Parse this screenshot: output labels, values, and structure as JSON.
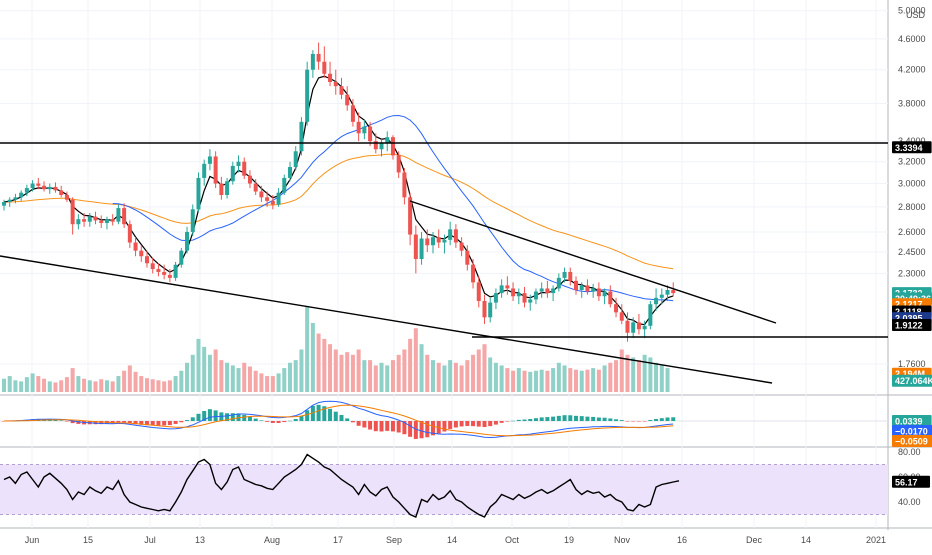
{
  "chart_data": {
    "type": "candlestick",
    "currency": "USD",
    "price_axis": {
      "scale": "log",
      "range": [
        1.62,
        5.1
      ],
      "ticks": [
        "5.0000",
        "4.6000",
        "4.2000",
        "3.8000",
        "3.4000",
        "3.2000",
        "3.0000",
        "2.8000",
        "2.6000",
        "2.4500",
        "2.3000",
        "1.7600"
      ],
      "tick_values": [
        5.0,
        4.6,
        4.2,
        3.8,
        3.4,
        3.2,
        3.0,
        2.8,
        2.6,
        2.45,
        2.3,
        1.76
      ]
    },
    "time_axis": {
      "labels": [
        "Jun",
        "15",
        "Jul",
        "13",
        "Aug",
        "17",
        "Sep",
        "14",
        "Oct",
        "19",
        "Nov",
        "16",
        "Dec",
        "14",
        "2021"
      ]
    },
    "candles": [
      [
        2.81,
        2.86,
        2.77,
        2.84
      ],
      [
        2.84,
        2.88,
        2.8,
        2.86
      ],
      [
        2.86,
        2.91,
        2.83,
        2.88
      ],
      [
        2.88,
        2.94,
        2.85,
        2.92
      ],
      [
        2.92,
        2.99,
        2.89,
        2.96
      ],
      [
        2.96,
        3.03,
        2.93,
        3.0
      ],
      [
        3.0,
        3.05,
        2.95,
        2.98
      ],
      [
        2.98,
        3.02,
        2.93,
        2.95
      ],
      [
        2.95,
        3.0,
        2.91,
        2.97
      ],
      [
        2.97,
        3.01,
        2.92,
        2.94
      ],
      [
        2.94,
        2.98,
        2.88,
        2.9
      ],
      [
        2.9,
        2.93,
        2.84,
        2.86
      ],
      [
        2.86,
        2.88,
        2.58,
        2.66
      ],
      [
        2.66,
        2.74,
        2.62,
        2.7
      ],
      [
        2.7,
        2.75,
        2.64,
        2.68
      ],
      [
        2.68,
        2.75,
        2.64,
        2.72
      ],
      [
        2.72,
        2.76,
        2.66,
        2.69
      ],
      [
        2.69,
        2.73,
        2.63,
        2.67
      ],
      [
        2.67,
        2.72,
        2.62,
        2.7
      ],
      [
        2.7,
        2.74,
        2.65,
        2.68
      ],
      [
        2.68,
        2.82,
        2.66,
        2.79
      ],
      [
        2.79,
        2.83,
        2.63,
        2.66
      ],
      [
        2.66,
        2.69,
        2.48,
        2.52
      ],
      [
        2.52,
        2.56,
        2.42,
        2.46
      ],
      [
        2.46,
        2.5,
        2.38,
        2.42
      ],
      [
        2.42,
        2.46,
        2.34,
        2.37
      ],
      [
        2.37,
        2.41,
        2.3,
        2.33
      ],
      [
        2.33,
        2.37,
        2.28,
        2.31
      ],
      [
        2.31,
        2.36,
        2.26,
        2.29
      ],
      [
        2.29,
        2.33,
        2.24,
        2.27
      ],
      [
        2.27,
        2.38,
        2.25,
        2.36
      ],
      [
        2.36,
        2.48,
        2.34,
        2.46
      ],
      [
        2.46,
        2.64,
        2.44,
        2.6
      ],
      [
        2.6,
        2.82,
        2.57,
        2.78
      ],
      [
        2.78,
        3.1,
        2.76,
        3.05
      ],
      [
        3.05,
        3.22,
        2.98,
        3.18
      ],
      [
        3.18,
        3.32,
        3.12,
        3.25
      ],
      [
        3.25,
        3.3,
        2.96,
        3.0
      ],
      [
        3.0,
        3.06,
        2.86,
        2.9
      ],
      [
        2.9,
        3.05,
        2.87,
        3.02
      ],
      [
        3.02,
        3.2,
        2.99,
        3.16
      ],
      [
        3.16,
        3.26,
        3.1,
        3.2
      ],
      [
        3.2,
        3.24,
        3.04,
        3.07
      ],
      [
        3.07,
        3.12,
        2.96,
        3.0
      ],
      [
        3.0,
        3.04,
        2.9,
        2.93
      ],
      [
        2.93,
        2.98,
        2.84,
        2.88
      ],
      [
        2.88,
        2.93,
        2.8,
        2.85
      ],
      [
        2.85,
        2.9,
        2.78,
        2.82
      ],
      [
        2.82,
        2.96,
        2.8,
        2.92
      ],
      [
        2.92,
        3.08,
        2.9,
        3.05
      ],
      [
        3.05,
        3.2,
        3.02,
        3.15
      ],
      [
        3.15,
        3.35,
        3.12,
        3.3
      ],
      [
        3.3,
        3.65,
        3.26,
        3.6
      ],
      [
        3.6,
        4.3,
        3.56,
        4.2
      ],
      [
        4.2,
        4.45,
        4.1,
        4.4
      ],
      [
        4.4,
        4.55,
        4.2,
        4.3
      ],
      [
        4.3,
        4.5,
        4.1,
        4.15
      ],
      [
        4.15,
        4.3,
        4.0,
        4.05
      ],
      [
        4.05,
        4.2,
        3.9,
        4.0
      ],
      [
        4.0,
        4.1,
        3.85,
        3.9
      ],
      [
        3.9,
        4.0,
        3.72,
        3.78
      ],
      [
        3.78,
        3.85,
        3.55,
        3.6
      ],
      [
        3.6,
        3.7,
        3.4,
        3.48
      ],
      [
        3.48,
        3.62,
        3.42,
        3.55
      ],
      [
        3.55,
        3.6,
        3.35,
        3.4
      ],
      [
        3.4,
        3.48,
        3.28,
        3.32
      ],
      [
        3.32,
        3.42,
        3.25,
        3.38
      ],
      [
        3.38,
        3.5,
        3.3,
        3.44
      ],
      [
        3.44,
        3.46,
        3.22,
        3.26
      ],
      [
        3.26,
        3.3,
        3.05,
        3.1
      ],
      [
        3.1,
        3.14,
        2.82,
        2.88
      ],
      [
        2.88,
        2.92,
        2.5,
        2.58
      ],
      [
        2.58,
        2.65,
        2.3,
        2.4
      ],
      [
        2.4,
        2.6,
        2.36,
        2.55
      ],
      [
        2.55,
        2.62,
        2.45,
        2.5
      ],
      [
        2.5,
        2.6,
        2.44,
        2.56
      ],
      [
        2.56,
        2.62,
        2.48,
        2.52
      ],
      [
        2.52,
        2.58,
        2.44,
        2.54
      ],
      [
        2.54,
        2.68,
        2.5,
        2.62
      ],
      [
        2.62,
        2.66,
        2.48,
        2.52
      ],
      [
        2.52,
        2.56,
        2.42,
        2.46
      ],
      [
        2.46,
        2.5,
        2.32,
        2.36
      ],
      [
        2.36,
        2.4,
        2.2,
        2.24
      ],
      [
        2.24,
        2.28,
        2.08,
        2.12
      ],
      [
        2.12,
        2.16,
        1.98,
        2.02
      ],
      [
        2.02,
        2.14,
        1.99,
        2.11
      ],
      [
        2.11,
        2.2,
        2.07,
        2.17
      ],
      [
        2.17,
        2.26,
        2.14,
        2.22
      ],
      [
        2.22,
        2.28,
        2.16,
        2.2
      ],
      [
        2.2,
        2.24,
        2.12,
        2.15
      ],
      [
        2.15,
        2.2,
        2.1,
        2.17
      ],
      [
        2.17,
        2.21,
        2.08,
        2.11
      ],
      [
        2.11,
        2.16,
        2.06,
        2.13
      ],
      [
        2.13,
        2.2,
        2.1,
        2.18
      ],
      [
        2.18,
        2.24,
        2.14,
        2.2
      ],
      [
        2.2,
        2.25,
        2.14,
        2.17
      ],
      [
        2.17,
        2.22,
        2.12,
        2.2
      ],
      [
        2.2,
        2.3,
        2.18,
        2.27
      ],
      [
        2.27,
        2.34,
        2.24,
        2.31
      ],
      [
        2.31,
        2.34,
        2.22,
        2.25
      ],
      [
        2.25,
        2.28,
        2.16,
        2.19
      ],
      [
        2.19,
        2.24,
        2.14,
        2.22
      ],
      [
        2.22,
        2.26,
        2.16,
        2.18
      ],
      [
        2.18,
        2.23,
        2.14,
        2.2
      ],
      [
        2.2,
        2.24,
        2.12,
        2.15
      ],
      [
        2.15,
        2.2,
        2.1,
        2.18
      ],
      [
        2.18,
        2.22,
        2.08,
        2.1
      ],
      [
        2.1,
        2.14,
        2.02,
        2.05
      ],
      [
        2.05,
        2.1,
        1.98,
        2.0
      ],
      [
        2.0,
        2.05,
        1.88,
        1.93
      ],
      [
        1.93,
        2.02,
        1.9,
        1.99
      ],
      [
        1.99,
        2.04,
        1.92,
        1.95
      ],
      [
        1.95,
        2.0,
        1.9,
        1.97
      ],
      [
        1.97,
        2.12,
        1.95,
        2.1
      ],
      [
        2.1,
        2.2,
        2.06,
        2.14
      ],
      [
        2.14,
        2.2,
        2.1,
        2.16
      ],
      [
        2.16,
        2.22,
        2.12,
        2.19
      ],
      [
        2.19,
        2.24,
        2.15,
        2.17
      ]
    ],
    "volume": [
      0.25,
      0.3,
      0.22,
      0.2,
      0.28,
      0.35,
      0.3,
      0.25,
      0.2,
      0.18,
      0.22,
      0.28,
      0.45,
      0.3,
      0.25,
      0.22,
      0.2,
      0.24,
      0.22,
      0.2,
      0.3,
      0.4,
      0.5,
      0.38,
      0.3,
      0.26,
      0.24,
      0.22,
      0.2,
      0.22,
      0.3,
      0.4,
      0.55,
      0.7,
      1.0,
      0.85,
      0.7,
      0.8,
      0.6,
      0.55,
      0.5,
      0.45,
      0.55,
      0.48,
      0.4,
      0.35,
      0.3,
      0.3,
      0.35,
      0.45,
      0.55,
      0.6,
      0.8,
      1.6,
      1.3,
      1.1,
      1.0,
      0.9,
      0.8,
      0.7,
      0.75,
      0.7,
      0.8,
      0.6,
      0.6,
      0.5,
      0.55,
      0.5,
      0.6,
      0.7,
      0.8,
      1.0,
      1.2,
      0.9,
      0.7,
      0.6,
      0.55,
      0.5,
      0.6,
      0.55,
      0.5,
      0.6,
      0.7,
      0.8,
      0.9,
      0.65,
      0.55,
      0.5,
      0.45,
      0.4,
      0.45,
      0.4,
      0.38,
      0.4,
      0.42,
      0.4,
      0.45,
      0.55,
      0.5,
      0.45,
      0.42,
      0.4,
      0.42,
      0.45,
      0.42,
      0.5,
      0.55,
      0.6,
      0.8,
      0.7,
      0.65,
      0.6,
      0.7,
      0.65,
      0.55,
      0.5,
      0.45
    ],
    "overlays": {
      "price_labels": [
        {
          "value": "3.3394",
          "price": 3.3394,
          "color": "#000000"
        },
        {
          "value": "2.1732",
          "price": 2.17,
          "color": "#26a69a"
        },
        {
          "value": "20:49:36",
          "price": 2.135,
          "color": "#26a69a"
        },
        {
          "value": "2.1217",
          "price": 2.1,
          "color": "#f57c00"
        },
        {
          "value": "2.1118",
          "price": 2.055,
          "color": "#000000"
        },
        {
          "value": "2.0395",
          "price": 2.015,
          "color": "#1e3a8a"
        },
        {
          "value": "1.9122",
          "price": 1.975,
          "color": "#000000"
        },
        {
          "value": "2.194M",
          "price": 1.71,
          "color": "#f57c00"
        },
        {
          "value": "427.064K",
          "price": 1.675,
          "color": "#26a69a"
        }
      ]
    },
    "macd": {
      "labels": [
        {
          "value": "0.0339",
          "color": "#26a69a"
        },
        {
          "value": "−0.0170",
          "color": "#2962ff"
        },
        {
          "value": "−0.0509",
          "color": "#f57c00"
        }
      ]
    },
    "rsi": {
      "ticks": [
        "80.00",
        "60.00",
        "40.00"
      ],
      "tick_values": [
        80,
        60,
        40
      ],
      "current": "56.17",
      "values": [
        58,
        60,
        55,
        62,
        64,
        58,
        52,
        60,
        63,
        59,
        55,
        50,
        42,
        48,
        46,
        52,
        49,
        47,
        52,
        50,
        57,
        46,
        40,
        38,
        36,
        35,
        34,
        33,
        34,
        33,
        40,
        48,
        58,
        65,
        72,
        74,
        70,
        55,
        50,
        56,
        66,
        68,
        58,
        56,
        54,
        53,
        51,
        50,
        55,
        60,
        63,
        66,
        70,
        78,
        75,
        72,
        68,
        66,
        62,
        58,
        55,
        52,
        46,
        54,
        48,
        45,
        50,
        52,
        44,
        40,
        35,
        30,
        28,
        42,
        40,
        46,
        42,
        44,
        49,
        42,
        40,
        36,
        33,
        30,
        28,
        36,
        40,
        46,
        44,
        42,
        46,
        43,
        45,
        48,
        50,
        47,
        49,
        52,
        55,
        58,
        50,
        46,
        49,
        47,
        48,
        44,
        46,
        42,
        40,
        34,
        33,
        38,
        36,
        38,
        52,
        54,
        55,
        56,
        57
      ]
    }
  }
}
